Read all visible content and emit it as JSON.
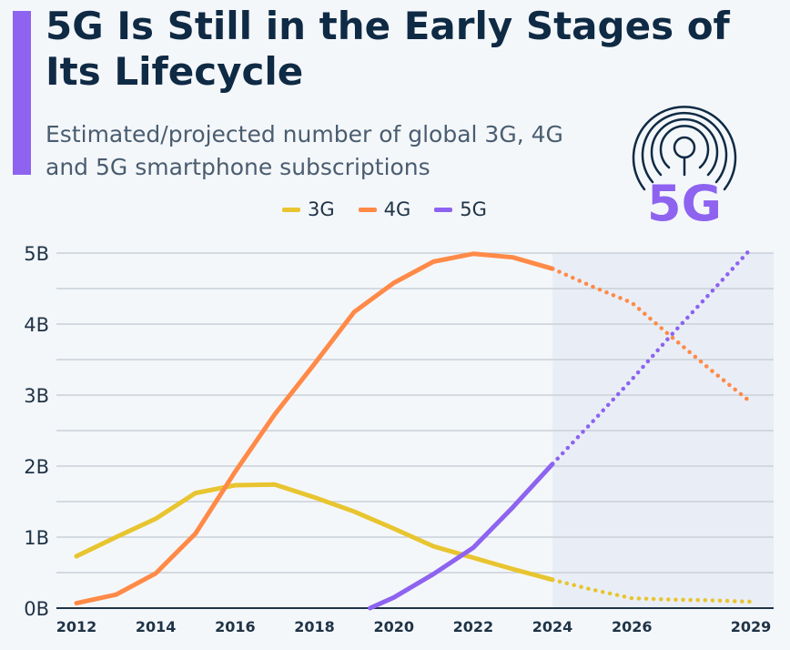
{
  "title": "5G Is Still in the Early Stages of Its Lifecycle",
  "subtitle": "Estimated/projected number of global 3G, 4G and 5G smartphone subscriptions",
  "logo": {
    "text": "5G",
    "icon": "antenna-signal-icon",
    "color": "#8d63f0"
  },
  "colors": {
    "accent": "#8d63f0",
    "3G": "#e8c530",
    "4G": "#ff8a47",
    "5G": "#8d63f0"
  },
  "chart_data": {
    "type": "line",
    "title": "5G Is Still in the Early Stages of Its Lifecycle",
    "xlabel": "",
    "ylabel": "",
    "xlim": [
      2012,
      2029
    ],
    "ylim": [
      0,
      5
    ],
    "y_ticks": [
      "0B",
      "1B",
      "2B",
      "3B",
      "4B",
      "5B"
    ],
    "y_tick_values": [
      0,
      1,
      2,
      3,
      4,
      5
    ],
    "x_ticks": [
      "2012",
      "2014",
      "2016",
      "2018",
      "2020",
      "2022",
      "2024",
      "2026",
      "2029"
    ],
    "x_tick_values": [
      2012,
      2014,
      2016,
      2018,
      2020,
      2022,
      2024,
      2026,
      2029
    ],
    "grid": true,
    "legend_position": "top",
    "projection_start": 2024,
    "projection_style": "dotted, shaded background",
    "series": [
      {
        "name": "3G",
        "x": [
          2012,
          2013,
          2014,
          2015,
          2016,
          2017,
          2018,
          2019,
          2020,
          2021,
          2022,
          2023,
          2024,
          2025,
          2026,
          2027,
          2028,
          2029
        ],
        "values": [
          0.73,
          1.0,
          1.26,
          1.62,
          1.73,
          1.74,
          1.56,
          1.36,
          1.12,
          0.87,
          0.71,
          0.55,
          0.4,
          0.26,
          0.14,
          0.12,
          0.11,
          0.09
        ]
      },
      {
        "name": "4G",
        "x": [
          2012,
          2013,
          2014,
          2015,
          2016,
          2017,
          2018,
          2019,
          2020,
          2021,
          2022,
          2023,
          2024,
          2025,
          2026,
          2027,
          2028,
          2029
        ],
        "values": [
          0.07,
          0.19,
          0.49,
          1.05,
          1.92,
          2.73,
          3.44,
          4.17,
          4.58,
          4.88,
          4.99,
          4.94,
          4.78,
          4.53,
          4.3,
          3.82,
          3.35,
          2.9
        ]
      },
      {
        "name": "5G",
        "x": [
          2019.4,
          2020,
          2021,
          2022,
          2023,
          2024,
          2025,
          2026,
          2027,
          2028,
          2029
        ],
        "values": [
          0.0,
          0.15,
          0.48,
          0.85,
          1.42,
          2.03,
          2.62,
          3.22,
          3.85,
          4.45,
          5.06
        ]
      }
    ]
  }
}
